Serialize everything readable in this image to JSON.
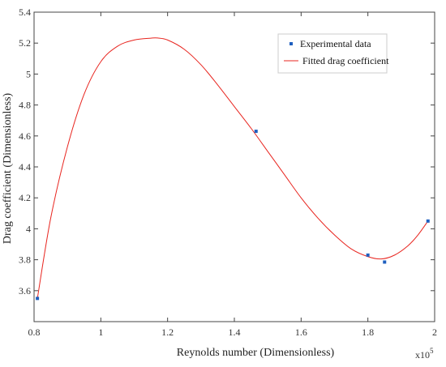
{
  "chart_data": {
    "type": "scatter",
    "title": "",
    "xlabel": "Reynolds number (Dimensionless)",
    "ylabel": "Drag coefficient (Dimensionless)",
    "x_multiplier_label": "x10",
    "x_multiplier_exponent": "5",
    "xlim": [
      0.8,
      2.0
    ],
    "ylim": [
      3.4,
      5.4
    ],
    "x_ticks": [
      {
        "value": 0.8,
        "label": "0.8"
      },
      {
        "value": 1.0,
        "label": "1"
      },
      {
        "value": 1.2,
        "label": "1.2"
      },
      {
        "value": 1.4,
        "label": "1.4"
      },
      {
        "value": 1.6,
        "label": "1.6"
      },
      {
        "value": 1.8,
        "label": "1.8"
      },
      {
        "value": 2.0,
        "label": "2"
      }
    ],
    "y_ticks": [
      {
        "value": 3.6,
        "label": "3.6"
      },
      {
        "value": 3.8,
        "label": "3.8"
      },
      {
        "value": 4.0,
        "label": "4"
      },
      {
        "value": 4.2,
        "label": "4.2"
      },
      {
        "value": 4.4,
        "label": "4.4"
      },
      {
        "value": 4.6,
        "label": "4.6"
      },
      {
        "value": 4.8,
        "label": "4.8"
      },
      {
        "value": 5.0,
        "label": "5"
      },
      {
        "value": 5.2,
        "label": "5.2"
      },
      {
        "value": 5.4,
        "label": "5.4"
      }
    ],
    "grid": false,
    "legend_position": "top-right",
    "series": [
      {
        "name": "Experimental data",
        "kind": "scatter",
        "color": "#1f5fbf",
        "x": [
          0.81,
          1.465,
          1.8,
          1.85,
          1.98
        ],
        "y": [
          3.55,
          4.63,
          3.83,
          3.785,
          4.05
        ]
      },
      {
        "name": "Fitted drag coefficient",
        "kind": "line",
        "color": "#e8251f",
        "x": [
          0.81,
          0.85,
          0.9,
          0.95,
          1.0,
          1.05,
          1.1,
          1.15,
          1.17,
          1.2,
          1.25,
          1.3,
          1.35,
          1.4,
          1.45,
          1.5,
          1.55,
          1.6,
          1.65,
          1.7,
          1.75,
          1.8,
          1.84,
          1.88,
          1.92,
          1.95,
          1.98
        ],
        "y": [
          3.55,
          4.07,
          4.53,
          4.87,
          5.08,
          5.18,
          5.22,
          5.232,
          5.233,
          5.22,
          5.16,
          5.06,
          4.93,
          4.79,
          4.65,
          4.5,
          4.35,
          4.2,
          4.07,
          3.96,
          3.87,
          3.82,
          3.805,
          3.83,
          3.89,
          3.96,
          4.05
        ]
      }
    ]
  }
}
